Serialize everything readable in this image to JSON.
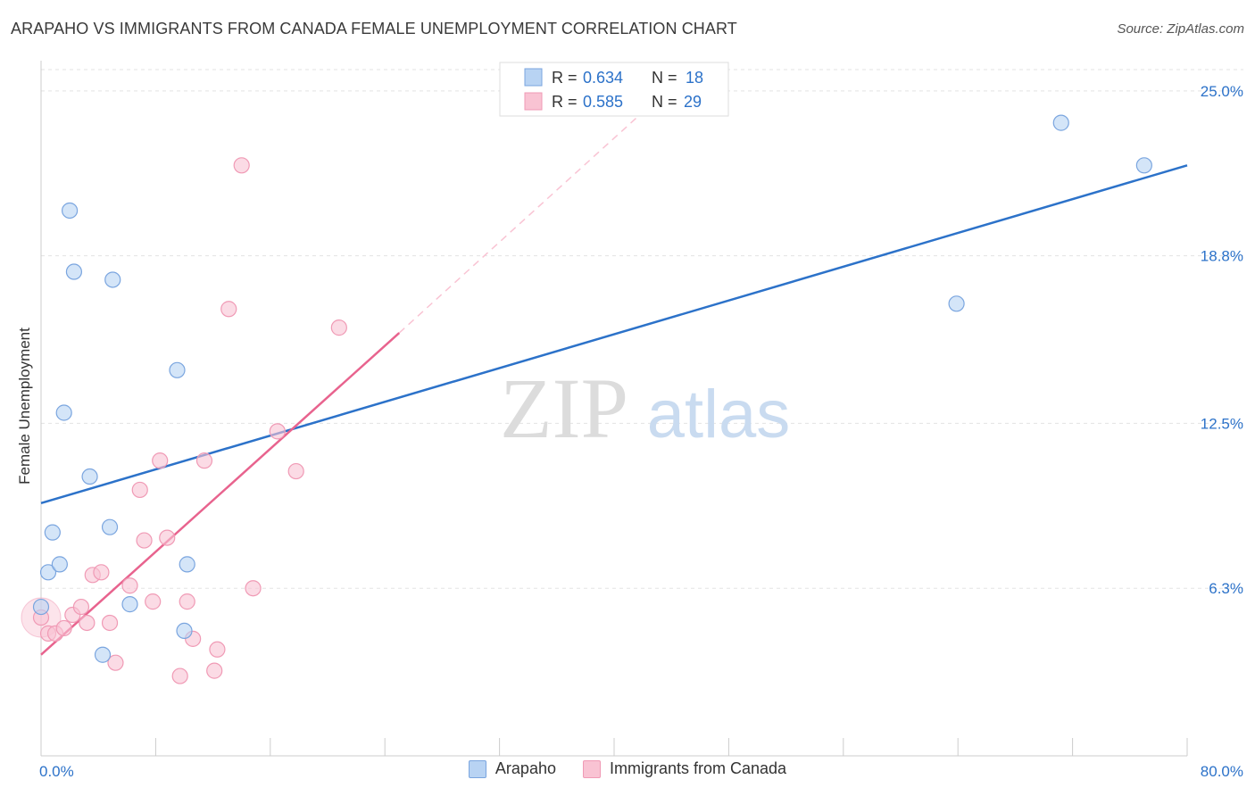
{
  "chart_data": {
    "type": "scatter",
    "title": "ARAPAHO VS IMMIGRANTS FROM CANADA FEMALE UNEMPLOYMENT CORRELATION CHART",
    "source": "Source: ZipAtlas.com",
    "xlabel": "",
    "ylabel": "Female Unemployment",
    "xlim": [
      0,
      80
    ],
    "ylim": [
      0,
      25.8
    ],
    "x_tick_labels": [
      "0.0%",
      "80.0%"
    ],
    "y_ticks": [
      6.3,
      12.5,
      18.8,
      25.0
    ],
    "y_tick_labels": [
      "6.3%",
      "12.5%",
      "18.8%",
      "25.0%"
    ],
    "watermark": {
      "zip": "ZIP",
      "atlas": "atlas"
    },
    "series": [
      {
        "name": "Arapaho",
        "color": "#2c72c9",
        "fill": "#b8d3f3",
        "stroke": "#7aa5df",
        "R": "0.634",
        "N": "18",
        "points": [
          [
            0.0,
            5.6
          ],
          [
            0.5,
            6.9
          ],
          [
            0.8,
            8.4
          ],
          [
            1.3,
            7.2
          ],
          [
            1.6,
            12.9
          ],
          [
            2.0,
            20.5
          ],
          [
            2.3,
            18.2
          ],
          [
            3.4,
            10.5
          ],
          [
            4.3,
            3.8
          ],
          [
            4.8,
            8.6
          ],
          [
            5.0,
            17.9
          ],
          [
            6.2,
            5.7
          ],
          [
            9.5,
            14.5
          ],
          [
            10.0,
            4.7
          ],
          [
            10.2,
            7.2
          ],
          [
            63.9,
            17.0
          ],
          [
            71.2,
            23.8
          ],
          [
            77.0,
            22.2
          ]
        ],
        "trend": {
          "x": [
            0,
            80
          ],
          "y": [
            9.5,
            22.2
          ]
        }
      },
      {
        "name": "Immigrants from Canada",
        "color": "#e8638e",
        "fill": "#f9c3d3",
        "stroke": "#f09ab5",
        "R": "0.585",
        "N": "29",
        "points": [
          [
            0.0,
            5.2
          ],
          [
            0.5,
            4.6
          ],
          [
            1.0,
            4.6
          ],
          [
            1.6,
            4.8
          ],
          [
            2.2,
            5.3
          ],
          [
            2.8,
            5.6
          ],
          [
            3.2,
            5.0
          ],
          [
            3.6,
            6.8
          ],
          [
            4.2,
            6.9
          ],
          [
            4.8,
            5.0
          ],
          [
            5.2,
            3.5
          ],
          [
            6.2,
            6.4
          ],
          [
            6.9,
            10.0
          ],
          [
            7.2,
            8.1
          ],
          [
            7.8,
            5.8
          ],
          [
            8.3,
            11.1
          ],
          [
            8.8,
            8.2
          ],
          [
            9.7,
            3.0
          ],
          [
            10.2,
            5.8
          ],
          [
            10.6,
            4.4
          ],
          [
            11.4,
            11.1
          ],
          [
            12.1,
            3.2
          ],
          [
            12.3,
            4.0
          ],
          [
            13.1,
            16.8
          ],
          [
            14.0,
            22.2
          ],
          [
            14.8,
            6.3
          ],
          [
            16.5,
            12.2
          ],
          [
            17.8,
            10.7
          ],
          [
            20.8,
            16.1
          ]
        ],
        "trend": {
          "x": [
            0,
            25
          ],
          "y": [
            3.8,
            15.9
          ]
        },
        "trend_extension": {
          "x": [
            25,
            42
          ],
          "y": [
            15.9,
            24.2
          ]
        }
      }
    ],
    "legend": [
      {
        "r_label": "R =",
        "r_value": "0.634",
        "n_label": "N =",
        "n_value": "18"
      },
      {
        "r_label": "R =",
        "r_value": "0.585",
        "n_label": "N =",
        "n_value": "29"
      }
    ],
    "bottom_legend": [
      "Arapaho",
      "Immigrants from Canada"
    ]
  }
}
